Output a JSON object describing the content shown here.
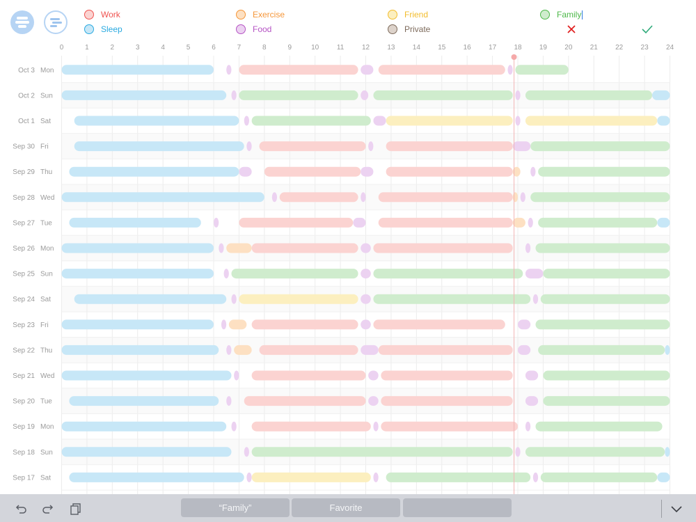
{
  "toolbar": {
    "menu_icon": "menu-icon",
    "timeline_icon": "timeline-icon"
  },
  "legend": [
    {
      "key": "work",
      "label": "Work",
      "color": "#ef5350",
      "fill": "#fbd3d1"
    },
    {
      "key": "exercise",
      "label": "Exercise",
      "color": "#f59638",
      "fill": "#fde0c2"
    },
    {
      "key": "friend",
      "label": "Friend",
      "color": "#f2bc2c",
      "fill": "#fcefbf"
    },
    {
      "key": "family",
      "label": "Family",
      "color": "#4cb848",
      "fill": "#cfeccd"
    },
    {
      "key": "sleep",
      "label": "Sleep",
      "color": "#29a9e0",
      "fill": "#c7e7f7"
    },
    {
      "key": "food",
      "label": "Food",
      "color": "#b553c4",
      "fill": "#ecd2f1"
    },
    {
      "key": "private",
      "label": "Private",
      "color": "#7d6a5b",
      "fill": "#ddd3cb"
    }
  ],
  "actions": {
    "cancel_icon": "close-icon",
    "confirm_icon": "checkmark-icon"
  },
  "chart_data": {
    "type": "timeline",
    "x_ticks": [
      "0",
      "1",
      "2",
      "3",
      "4",
      "5",
      "6",
      "7",
      "8",
      "9",
      "10",
      "11",
      "12",
      "13",
      "14",
      "15",
      "16",
      "17",
      "18",
      "19",
      "20",
      "21",
      "22",
      "23",
      "24"
    ],
    "x_range": [
      0,
      24
    ],
    "current_time_hour": 17.85,
    "rows": [
      {
        "date": "Oct 3",
        "weekday": "Mon",
        "segments": [
          [
            "sleep",
            0,
            6
          ],
          [
            "food",
            6.5,
            6.7
          ],
          [
            "work",
            7,
            11.7
          ],
          [
            "food",
            11.8,
            12.3
          ],
          [
            "work",
            12.5,
            17.5
          ],
          [
            "food",
            17.6,
            17.8
          ],
          [
            "family",
            17.9,
            20
          ]
        ]
      },
      {
        "date": "Oct 2",
        "weekday": "Sun",
        "segments": [
          [
            "sleep",
            0,
            6.5
          ],
          [
            "food",
            6.7,
            6.9
          ],
          [
            "family",
            7,
            11.7
          ],
          [
            "food",
            11.8,
            12.1
          ],
          [
            "family",
            12.3,
            17.8
          ],
          [
            "food",
            17.9,
            18.1
          ],
          [
            "family",
            18.3,
            23.3
          ],
          [
            "sleep",
            23.3,
            24
          ]
        ]
      },
      {
        "date": "Oct 1",
        "weekday": "Sat",
        "segments": [
          [
            "sleep",
            0.5,
            7
          ],
          [
            "food",
            7.2,
            7.4
          ],
          [
            "family",
            7.5,
            12.2
          ],
          [
            "food",
            12.3,
            12.8
          ],
          [
            "friend",
            12.8,
            17.8
          ],
          [
            "food",
            17.9,
            18.1
          ],
          [
            "friend",
            18.3,
            23.5
          ],
          [
            "sleep",
            23.5,
            24
          ]
        ]
      },
      {
        "date": "Sep 30",
        "weekday": "Fri",
        "segments": [
          [
            "sleep",
            0.5,
            7.2
          ],
          [
            "food",
            7.3,
            7.5
          ],
          [
            "work",
            7.8,
            12
          ],
          [
            "food",
            12.1,
            12.3
          ],
          [
            "work",
            12.8,
            17.8
          ],
          [
            "food",
            17.8,
            18.5
          ],
          [
            "family",
            18.5,
            24
          ]
        ]
      },
      {
        "date": "Sep 29",
        "weekday": "Thu",
        "segments": [
          [
            "sleep",
            0.3,
            7
          ],
          [
            "food",
            7,
            7.5
          ],
          [
            "work",
            8,
            11.8
          ],
          [
            "food",
            11.8,
            12.3
          ],
          [
            "work",
            12.8,
            17.8
          ],
          [
            "exercise",
            17.8,
            18.1
          ],
          [
            "food",
            18.5,
            18.7
          ],
          [
            "family",
            18.8,
            24
          ]
        ]
      },
      {
        "date": "Sep 28",
        "weekday": "Wed",
        "segments": [
          [
            "sleep",
            0,
            8
          ],
          [
            "food",
            8.3,
            8.5
          ],
          [
            "work",
            8.6,
            11.7
          ],
          [
            "food",
            11.8,
            12
          ],
          [
            "work",
            12.5,
            17.8
          ],
          [
            "exercise",
            17.8,
            18
          ],
          [
            "food",
            18.1,
            18.3
          ],
          [
            "family",
            18.5,
            24
          ]
        ]
      },
      {
        "date": "Sep 27",
        "weekday": "Tue",
        "segments": [
          [
            "sleep",
            0.3,
            5.5
          ],
          [
            "food",
            6,
            6.2
          ],
          [
            "work",
            7,
            11.5
          ],
          [
            "food",
            11.5,
            12
          ],
          [
            "work",
            12.5,
            17.8
          ],
          [
            "exercise",
            17.8,
            18.3
          ],
          [
            "food",
            18.4,
            18.6
          ],
          [
            "family",
            18.8,
            23.5
          ],
          [
            "sleep",
            23.5,
            24
          ]
        ]
      },
      {
        "date": "Sep 26",
        "weekday": "Mon",
        "segments": [
          [
            "sleep",
            0,
            6
          ],
          [
            "food",
            6.2,
            6.4
          ],
          [
            "exercise",
            6.5,
            7.5
          ],
          [
            "work",
            7.5,
            11.7
          ],
          [
            "food",
            11.8,
            12.2
          ],
          [
            "work",
            12.3,
            17.8
          ],
          [
            "food",
            18.3,
            18.5
          ],
          [
            "family",
            18.7,
            24
          ]
        ]
      },
      {
        "date": "Sep 25",
        "weekday": "Sun",
        "segments": [
          [
            "sleep",
            0,
            6
          ],
          [
            "food",
            6.4,
            6.6
          ],
          [
            "family",
            6.7,
            11.7
          ],
          [
            "food",
            11.8,
            12.2
          ],
          [
            "family",
            12.3,
            18.2
          ],
          [
            "food",
            18.3,
            19
          ],
          [
            "family",
            19,
            24
          ]
        ]
      },
      {
        "date": "Sep 24",
        "weekday": "Sat",
        "segments": [
          [
            "sleep",
            0.5,
            6.5
          ],
          [
            "food",
            6.7,
            6.9
          ],
          [
            "friend",
            7,
            11.7
          ],
          [
            "food",
            11.8,
            12.2
          ],
          [
            "family",
            12.3,
            18.5
          ],
          [
            "food",
            18.6,
            18.8
          ],
          [
            "family",
            18.9,
            24
          ]
        ]
      },
      {
        "date": "Sep 23",
        "weekday": "Fri",
        "segments": [
          [
            "sleep",
            0,
            6
          ],
          [
            "food",
            6.3,
            6.5
          ],
          [
            "exercise",
            6.6,
            7.3
          ],
          [
            "work",
            7.5,
            11.7
          ],
          [
            "food",
            11.8,
            12.2
          ],
          [
            "work",
            12.3,
            17.5
          ],
          [
            "food",
            18,
            18.5
          ],
          [
            "family",
            18.7,
            24
          ]
        ]
      },
      {
        "date": "Sep 22",
        "weekday": "Thu",
        "segments": [
          [
            "sleep",
            0,
            6.2
          ],
          [
            "food",
            6.5,
            6.7
          ],
          [
            "exercise",
            6.8,
            7.5
          ],
          [
            "work",
            7.8,
            11.7
          ],
          [
            "food",
            11.8,
            12.5
          ],
          [
            "work",
            12.5,
            17.8
          ],
          [
            "food",
            18,
            18.5
          ],
          [
            "family",
            18.8,
            23.8
          ],
          [
            "sleep",
            23.8,
            24
          ]
        ]
      },
      {
        "date": "Sep 21",
        "weekday": "Wed",
        "segments": [
          [
            "sleep",
            0,
            6.7
          ],
          [
            "food",
            6.8,
            7
          ],
          [
            "work",
            7.5,
            12
          ],
          [
            "food",
            12.1,
            12.5
          ],
          [
            "work",
            12.6,
            17.8
          ],
          [
            "food",
            18.3,
            18.8
          ],
          [
            "family",
            19,
            24
          ]
        ]
      },
      {
        "date": "Sep 20",
        "weekday": "Tue",
        "segments": [
          [
            "sleep",
            0.3,
            6.2
          ],
          [
            "food",
            6.5,
            6.7
          ],
          [
            "work",
            7.2,
            12
          ],
          [
            "food",
            12.1,
            12.5
          ],
          [
            "work",
            12.6,
            17.8
          ],
          [
            "food",
            18.3,
            18.8
          ],
          [
            "family",
            19,
            24
          ]
        ]
      },
      {
        "date": "Sep 19",
        "weekday": "Mon",
        "segments": [
          [
            "sleep",
            0,
            6.5
          ],
          [
            "food",
            6.7,
            6.9
          ],
          [
            "work",
            7.5,
            12.2
          ],
          [
            "food",
            12.3,
            12.5
          ],
          [
            "work",
            12.6,
            18
          ],
          [
            "food",
            18.3,
            18.5
          ],
          [
            "family",
            18.7,
            23.7
          ]
        ]
      },
      {
        "date": "Sep 18",
        "weekday": "Sun",
        "segments": [
          [
            "sleep",
            0,
            6.7
          ],
          [
            "food",
            7.2,
            7.4
          ],
          [
            "family",
            7.5,
            17.8
          ],
          [
            "food",
            17.9,
            18.1
          ],
          [
            "family",
            18.3,
            23.8
          ],
          [
            "sleep",
            23.8,
            24
          ]
        ]
      },
      {
        "date": "Sep 17",
        "weekday": "Sat",
        "segments": [
          [
            "sleep",
            0.3,
            7.2
          ],
          [
            "food",
            7.3,
            7.5
          ],
          [
            "friend",
            7.5,
            12.2
          ],
          [
            "food",
            12.3,
            12.5
          ],
          [
            "family",
            12.8,
            18.5
          ],
          [
            "food",
            18.6,
            18.8
          ],
          [
            "family",
            18.9,
            23.5
          ],
          [
            "sleep",
            23.5,
            24
          ]
        ]
      }
    ]
  },
  "bottom_bar": {
    "undo_icon": "undo-icon",
    "redo_icon": "redo-icon",
    "paste_icon": "clipboard-icon",
    "suggestions": [
      "“Family”",
      "Favorite",
      ""
    ],
    "dismiss_icon": "chevron-down-icon"
  },
  "edit_value": "Family"
}
